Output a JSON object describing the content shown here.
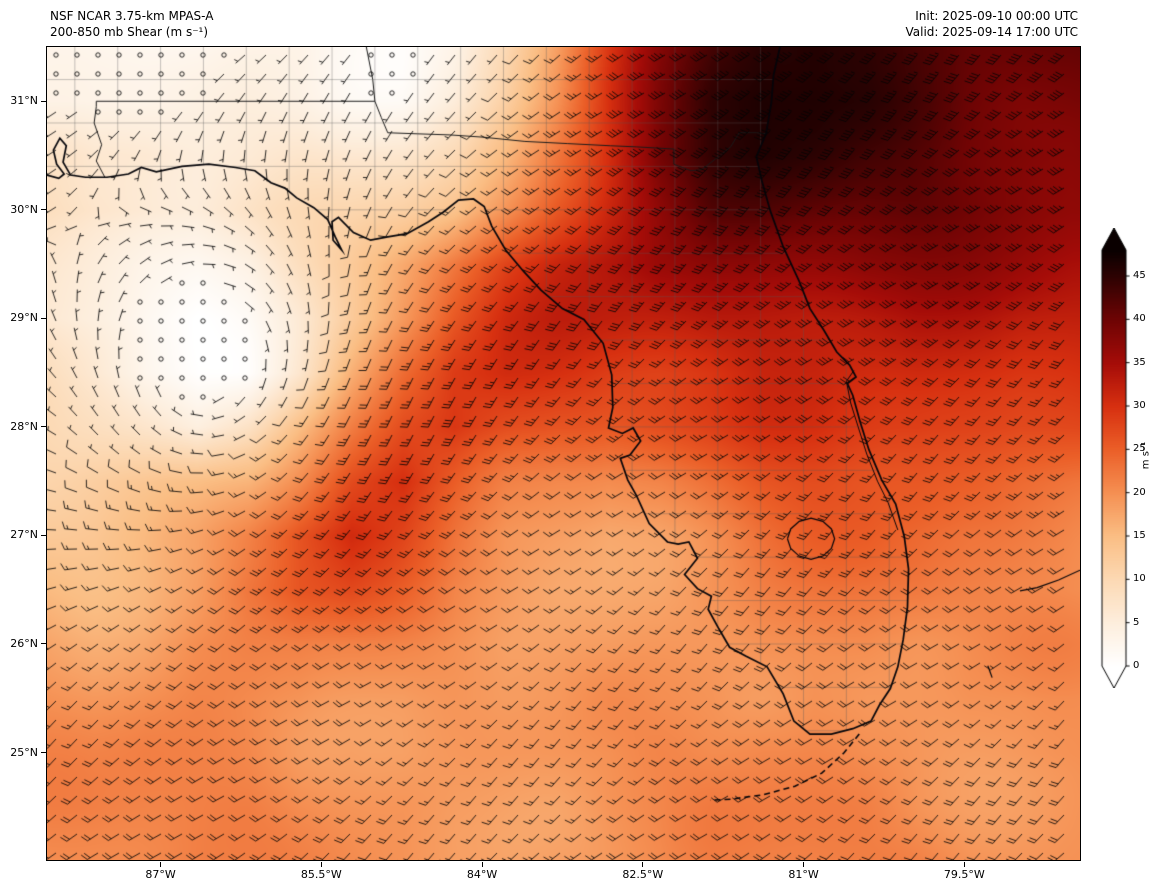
{
  "header": {
    "model_title": "NSF NCAR 3.75-km MPAS-A",
    "field_title": "200-850 mb Shear (m s⁻¹)",
    "init_label": "Init: 2025-09-10 00:00 UTC",
    "valid_label": "Valid: 2025-09-14 17:00 UTC"
  },
  "chart_data": {
    "type": "heatmap",
    "title": "200-850 mb Shear (m s⁻¹)",
    "units": "m s⁻¹",
    "projection_extent": {
      "lon_west": 88.06,
      "lon_east": 78.42,
      "lat_north": 31.5,
      "lat_south": 24.01
    },
    "x_axis": {
      "ticks": [
        87,
        85.5,
        84,
        82.5,
        81,
        79.5
      ],
      "labels": [
        "87°W",
        "85.5°W",
        "84°W",
        "82.5°W",
        "81°W",
        "79.5°W"
      ]
    },
    "y_axis": {
      "ticks": [
        31,
        30,
        29,
        28,
        27,
        26,
        25
      ],
      "labels": [
        "31°N",
        "30°N",
        "29°N",
        "28°N",
        "27°N",
        "26°N",
        "25°N"
      ]
    },
    "colorbar": {
      "label": "m s⁻¹",
      "ticks": [
        0,
        5,
        10,
        15,
        20,
        25,
        30,
        35,
        40,
        45
      ],
      "extend": "both",
      "vmin": 0,
      "vmax": 48,
      "stops": {
        "values": [
          0,
          5,
          10,
          15,
          20,
          25,
          30,
          35,
          40,
          45,
          48
        ],
        "colors": [
          "#ffffff",
          "#fdeedd",
          "#fcd9b4",
          "#fabe84",
          "#f59053",
          "#eb5f28",
          "#d73010",
          "#a50c08",
          "#6e0404",
          "#2d0202",
          "#0a0000"
        ]
      }
    },
    "shear_grid": {
      "lon_start": 88.1,
      "lon_step": -0.48,
      "ncols": 21,
      "lat_start": 31.5,
      "lat_step": -0.5,
      "nrows": 16,
      "values": [
        [
          2,
          2,
          2,
          2,
          3,
          4,
          3,
          2,
          4,
          10,
          18,
          28,
          36,
          42,
          46,
          47,
          46,
          44,
          42,
          41,
          40
        ],
        [
          3,
          2,
          2,
          3,
          4,
          4,
          3,
          3,
          6,
          12,
          20,
          30,
          38,
          44,
          46,
          46,
          45,
          43,
          41,
          40,
          40
        ],
        [
          8,
          6,
          6,
          5,
          5,
          6,
          6,
          7,
          10,
          16,
          24,
          32,
          40,
          44,
          45,
          44,
          42,
          41,
          40,
          40,
          39
        ],
        [
          10,
          8,
          7,
          6,
          7,
          8,
          9,
          11,
          14,
          20,
          27,
          33,
          38,
          42,
          42,
          41,
          40,
          40,
          39,
          38,
          37
        ],
        [
          8,
          6,
          4,
          3,
          4,
          8,
          12,
          17,
          22,
          27,
          31,
          34,
          37,
          38,
          38,
          38,
          38,
          37,
          36,
          35,
          34
        ],
        [
          6,
          4,
          2,
          1,
          3,
          7,
          13,
          19,
          25,
          29,
          31,
          32,
          33,
          34,
          34,
          34,
          34,
          34,
          33,
          32,
          32
        ],
        [
          8,
          5,
          2,
          1,
          2,
          8,
          17,
          24,
          29,
          30,
          29,
          28,
          28,
          29,
          31,
          32,
          32,
          32,
          31,
          30,
          30
        ],
        [
          10,
          8,
          6,
          4,
          8,
          15,
          22,
          28,
          31,
          28,
          26,
          25,
          26,
          27,
          29,
          30,
          30,
          30,
          29,
          28,
          28
        ],
        [
          12,
          12,
          12,
          13,
          15,
          20,
          27,
          31,
          27,
          23,
          21,
          20,
          21,
          23,
          25,
          26,
          26,
          26,
          25,
          24,
          24
        ],
        [
          14,
          14,
          15,
          17,
          21,
          26,
          30,
          27,
          23,
          20,
          19,
          18,
          19,
          21,
          23,
          24,
          24,
          23,
          22,
          22,
          22
        ],
        [
          16,
          16,
          17,
          19,
          23,
          26,
          26,
          23,
          20,
          19,
          18,
          18,
          19,
          21,
          22,
          22,
          22,
          22,
          21,
          20,
          20
        ],
        [
          18,
          18,
          19,
          21,
          22,
          22,
          21,
          20,
          19,
          18,
          18,
          18,
          19,
          20,
          21,
          21,
          21,
          20,
          20,
          20,
          20
        ],
        [
          19,
          19,
          20,
          21,
          21,
          21,
          20,
          19,
          19,
          18,
          18,
          19,
          19,
          20,
          20,
          21,
          20,
          20,
          20,
          19,
          19
        ],
        [
          20,
          20,
          21,
          21,
          21,
          20,
          20,
          19,
          19,
          19,
          19,
          19,
          20,
          20,
          21,
          21,
          20,
          20,
          20,
          20,
          20
        ],
        [
          21,
          21,
          21,
          21,
          21,
          20,
          20,
          20,
          19,
          19,
          19,
          20,
          20,
          21,
          21,
          21,
          21,
          20,
          20,
          20,
          20
        ],
        [
          21,
          21,
          21,
          21,
          20,
          20,
          20,
          20,
          19,
          19,
          20,
          20,
          20,
          21,
          21,
          21,
          21,
          21,
          20,
          20,
          20
        ]
      ]
    },
    "wind": {
      "type": "barbs",
      "calm_center": {
        "lon": 86.6,
        "lat": 28.5
      },
      "full_barb_ms": 10,
      "half_barb_ms": 5,
      "pennant_ms": 50,
      "calm_threshold_ms": 3
    },
    "geo": {
      "county_step": 0.4,
      "coast": [
        [
          88.06,
          30.32
        ],
        [
          87.95,
          30.29
        ],
        [
          87.9,
          30.33
        ],
        [
          87.97,
          30.42
        ],
        [
          88.0,
          30.55
        ],
        [
          87.94,
          30.66
        ],
        [
          87.88,
          30.59
        ],
        [
          87.91,
          30.44
        ],
        [
          87.84,
          30.32
        ],
        [
          87.7,
          30.3
        ],
        [
          87.5,
          30.3
        ],
        [
          87.3,
          30.33
        ],
        [
          87.18,
          30.39
        ],
        [
          87.04,
          30.35
        ],
        [
          86.8,
          30.4
        ],
        [
          86.55,
          30.42
        ],
        [
          86.3,
          30.39
        ],
        [
          86.12,
          30.36
        ],
        [
          85.97,
          30.25
        ],
        [
          85.84,
          30.2
        ],
        [
          85.73,
          30.11
        ],
        [
          85.57,
          30.02
        ],
        [
          85.44,
          29.91
        ],
        [
          85.37,
          29.75
        ],
        [
          85.31,
          29.63
        ],
        [
          85.39,
          29.72
        ],
        [
          85.4,
          29.89
        ],
        [
          85.34,
          29.93
        ],
        [
          85.2,
          29.79
        ],
        [
          85.04,
          29.72
        ],
        [
          84.88,
          29.75
        ],
        [
          84.7,
          29.78
        ],
        [
          84.5,
          29.89
        ],
        [
          84.36,
          29.98
        ],
        [
          84.22,
          30.09
        ],
        [
          84.08,
          30.1
        ],
        [
          83.98,
          30.03
        ],
        [
          83.91,
          29.85
        ],
        [
          83.78,
          29.63
        ],
        [
          83.61,
          29.43
        ],
        [
          83.45,
          29.26
        ],
        [
          83.25,
          29.09
        ],
        [
          83.05,
          28.99
        ],
        [
          82.87,
          28.77
        ],
        [
          82.79,
          28.48
        ],
        [
          82.78,
          28.18
        ],
        [
          82.82,
          27.99
        ],
        [
          82.69,
          27.94
        ],
        [
          82.59,
          27.99
        ],
        [
          82.52,
          27.87
        ],
        [
          82.62,
          27.74
        ],
        [
          82.71,
          27.71
        ],
        [
          82.64,
          27.51
        ],
        [
          82.56,
          27.37
        ],
        [
          82.44,
          27.11
        ],
        [
          82.27,
          26.94
        ],
        [
          82.17,
          26.92
        ],
        [
          82.07,
          26.94
        ],
        [
          81.99,
          26.79
        ],
        [
          82.11,
          26.64
        ],
        [
          81.99,
          26.51
        ],
        [
          81.86,
          26.44
        ],
        [
          81.89,
          26.32
        ],
        [
          81.79,
          26.14
        ],
        [
          81.69,
          25.97
        ],
        [
          81.54,
          25.89
        ],
        [
          81.34,
          25.79
        ],
        [
          81.19,
          25.54
        ],
        [
          81.09,
          25.29
        ],
        [
          80.94,
          25.17
        ],
        [
          80.74,
          25.17
        ],
        [
          80.54,
          25.22
        ],
        [
          80.37,
          25.29
        ],
        [
          80.29,
          25.44
        ],
        [
          80.19,
          25.59
        ],
        [
          80.12,
          25.79
        ],
        [
          80.07,
          26.04
        ],
        [
          80.03,
          26.34
        ],
        [
          80.02,
          26.69
        ],
        [
          80.06,
          26.99
        ],
        [
          80.14,
          27.29
        ],
        [
          80.27,
          27.51
        ],
        [
          80.39,
          27.79
        ],
        [
          80.47,
          28.04
        ],
        [
          80.54,
          28.29
        ],
        [
          80.59,
          28.4
        ],
        [
          80.51,
          28.46
        ],
        [
          80.57,
          28.57
        ],
        [
          80.69,
          28.69
        ],
        [
          80.81,
          28.89
        ],
        [
          80.94,
          29.09
        ],
        [
          81.04,
          29.34
        ],
        [
          81.19,
          29.66
        ],
        [
          81.31,
          29.99
        ],
        [
          81.39,
          30.27
        ],
        [
          81.44,
          30.49
        ],
        [
          81.35,
          30.7
        ],
        [
          81.3,
          30.99
        ],
        [
          81.28,
          31.24
        ],
        [
          81.22,
          31.5
        ]
      ],
      "borders": [
        [
          [
            87.6,
            31.0
          ],
          [
            87.6,
            30.95
          ],
          [
            87.62,
            30.8
          ],
          [
            87.55,
            30.6
          ],
          [
            87.6,
            30.45
          ],
          [
            87.52,
            30.3
          ]
        ],
        [
          [
            87.6,
            31.0
          ],
          [
            85.0,
            31.0
          ]
        ],
        [
          [
            85.0,
            31.0
          ],
          [
            85.02,
            31.2
          ],
          [
            85.08,
            31.5
          ]
        ],
        [
          [
            85.0,
            31.0
          ],
          [
            84.94,
            30.85
          ],
          [
            84.88,
            30.71
          ],
          [
            84.6,
            30.7
          ],
          [
            84.3,
            30.69
          ],
          [
            84.0,
            30.67
          ],
          [
            83.6,
            30.63
          ],
          [
            83.2,
            30.61
          ],
          [
            82.8,
            30.59
          ],
          [
            82.56,
            30.58
          ],
          [
            82.21,
            30.56
          ],
          [
            82.21,
            30.42
          ],
          [
            82.05,
            30.36
          ],
          [
            81.95,
            30.37
          ],
          [
            81.82,
            30.47
          ],
          [
            81.68,
            30.58
          ],
          [
            81.6,
            30.71
          ],
          [
            81.44,
            30.71
          ],
          [
            81.35,
            30.7
          ]
        ]
      ],
      "lagoon": [
        [
          80.53,
          28.52
        ],
        [
          80.6,
          28.42
        ],
        [
          80.56,
          28.22
        ],
        [
          80.49,
          28.0
        ],
        [
          80.41,
          27.75
        ],
        [
          80.31,
          27.5
        ],
        [
          80.21,
          27.3
        ],
        [
          80.12,
          27.05
        ]
      ],
      "lake": [
        [
          81.15,
          26.97
        ],
        [
          81.12,
          27.06
        ],
        [
          81.04,
          27.13
        ],
        [
          80.93,
          27.16
        ],
        [
          80.82,
          27.13
        ],
        [
          80.74,
          27.06
        ],
        [
          80.71,
          26.97
        ],
        [
          80.74,
          26.88
        ],
        [
          80.82,
          26.81
        ],
        [
          80.93,
          26.78
        ],
        [
          81.04,
          26.81
        ],
        [
          81.12,
          26.88
        ],
        [
          81.15,
          26.97
        ]
      ],
      "keys": [
        [
          80.48,
          25.17
        ],
        [
          80.62,
          25.0
        ],
        [
          80.83,
          24.81
        ],
        [
          81.08,
          24.69
        ],
        [
          81.38,
          24.61
        ],
        [
          81.68,
          24.57
        ],
        [
          81.87,
          24.56
        ]
      ],
      "islands": [
        [
          [
            79.28,
            25.8
          ],
          [
            79.24,
            25.69
          ]
        ],
        [
          [
            78.42,
            26.68
          ],
          [
            78.62,
            26.59
          ],
          [
            78.82,
            26.52
          ],
          [
            78.98,
            26.49
          ]
        ]
      ]
    }
  }
}
